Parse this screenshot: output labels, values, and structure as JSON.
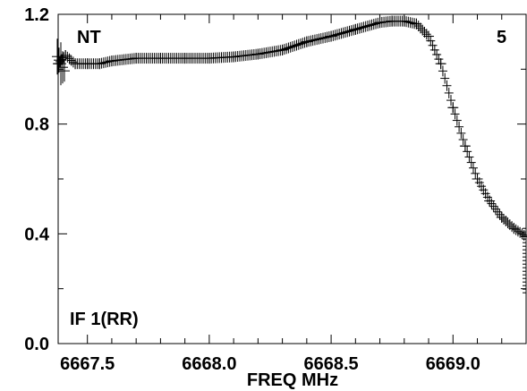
{
  "chart_data": {
    "type": "scatter",
    "title": "",
    "xlabel": "FREQ MHz",
    "ylabel": "",
    "xlim": [
      6667.38,
      6669.3
    ],
    "ylim": [
      0.0,
      1.2
    ],
    "x_ticks": [
      "6667.5",
      "6668.0",
      "6668.5",
      "6669.0"
    ],
    "y_ticks": [
      "0.0",
      "0.4",
      "0.8",
      "1.2"
    ],
    "grid": false,
    "marker": "plus",
    "annotations": {
      "source": "NT",
      "panel": "5",
      "channel": "IF 1(RR)"
    },
    "series": [
      {
        "x": [
          6667.38,
          6667.41,
          6667.45,
          6667.5,
          6667.55,
          6667.6,
          6667.7,
          6667.8,
          6667.9,
          6668.0,
          6668.1,
          6668.2,
          6668.3,
          6668.4,
          6668.5,
          6668.6,
          6668.7,
          6668.75,
          6668.8,
          6668.85,
          6668.9,
          6668.95,
          6669.0,
          6669.05,
          6669.1,
          6669.15,
          6669.2,
          6669.25,
          6669.3
        ],
        "y": [
          1.02,
          1.05,
          1.02,
          1.02,
          1.02,
          1.03,
          1.04,
          1.04,
          1.04,
          1.04,
          1.045,
          1.055,
          1.07,
          1.1,
          1.12,
          1.145,
          1.17,
          1.175,
          1.175,
          1.165,
          1.12,
          1.02,
          0.86,
          0.72,
          0.6,
          0.52,
          0.46,
          0.42,
          0.39
        ]
      }
    ]
  }
}
